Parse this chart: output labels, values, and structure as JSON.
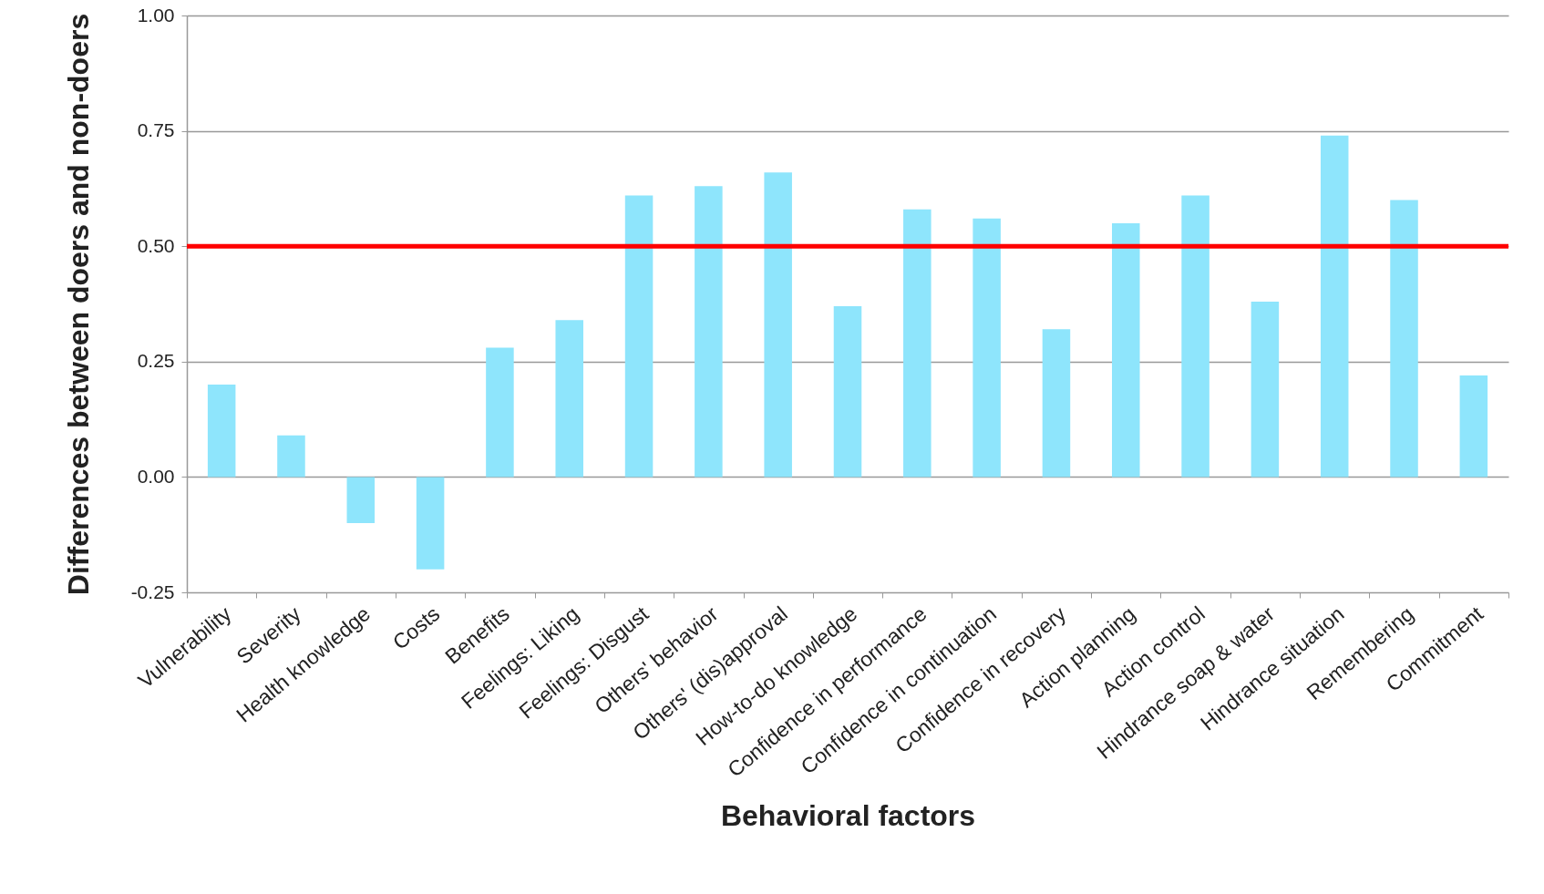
{
  "chart_data": {
    "type": "bar",
    "xlabel": "Behavioral factors",
    "ylabel": "Differences between doers and non-doers",
    "categories": [
      "Vulnerability",
      "Severity",
      "Health knowledge",
      "Costs",
      "Benefits",
      "Feelings: Liking",
      "Feelings: Disgust",
      "Others' behavior",
      "Others' (dis)approval",
      "How-to-do knowledge",
      "Confidence in performance",
      "Confidence in continuation",
      "Confidence in recovery",
      "Action planning",
      "Action control",
      "Hindrance soap & water",
      "Hindrance situation",
      "Remembering",
      "Commitment"
    ],
    "values": [
      0.2,
      0.09,
      -0.1,
      -0.2,
      0.28,
      0.34,
      0.61,
      0.63,
      0.66,
      0.37,
      0.58,
      0.56,
      0.32,
      0.55,
      0.61,
      0.38,
      0.74,
      0.6,
      0.22
    ],
    "color": "#8ee5fc",
    "ylim": [
      -0.25,
      1.0
    ],
    "yticks": [
      {
        "value": -0.25,
        "label": "-0.25"
      },
      {
        "value": 0,
        "label": "0.00"
      },
      {
        "value": 0.25,
        "label": "0.25"
      },
      {
        "value": 0.5,
        "label": "0.50"
      },
      {
        "value": 0.75,
        "label": "0.75"
      },
      {
        "value": 1,
        "label": "1.00"
      }
    ],
    "grid": "y",
    "ref_lines": [
      {
        "axis": "y",
        "value": 0.5,
        "color": "#ff0000"
      }
    ]
  }
}
